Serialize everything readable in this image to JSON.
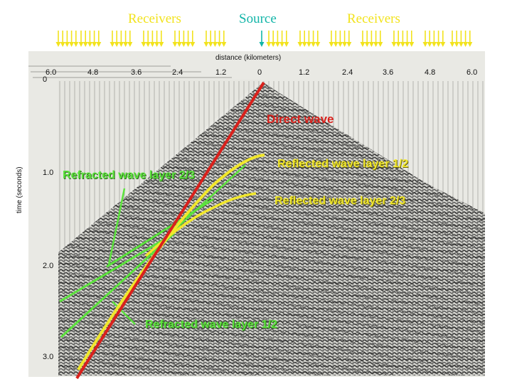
{
  "labels": {
    "receivers_left": "Receivers",
    "receivers_right": "Receivers",
    "source": "Source"
  },
  "axis": {
    "distance_label": "distance (kilometers)",
    "time_label": "time (seconds)",
    "distance_ticks": [
      "6.0",
      "4.8",
      "3.6",
      "2.4",
      "1.2",
      "0",
      "1.2",
      "2.4",
      "3.6",
      "4.8",
      "6.0"
    ],
    "time_ticks": [
      "0",
      "1.0",
      "2.0",
      "3.0"
    ]
  },
  "annotations": {
    "direct": "Direct wave",
    "reflected_12": "Reflected wave layer 1/2",
    "reflected_23": "Reflected wave layer 2/3",
    "refracted_23": "Refracted wave layer 2/3",
    "refracted_12": "Refracted wave layer 1/2"
  },
  "colors": {
    "receiver": "#f2e31d",
    "source": "#12b5a8",
    "direct": "#d9211c",
    "reflected": "#f1e72b",
    "refracted": "#5be23c",
    "seismic_dark": "#3b3b3b"
  }
}
